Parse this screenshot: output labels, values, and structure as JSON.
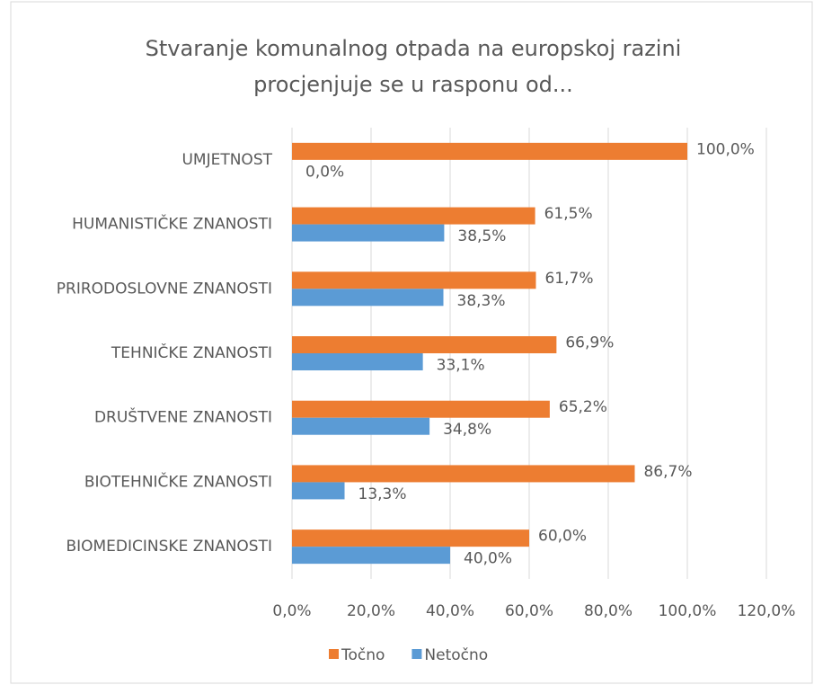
{
  "chart_data": {
    "type": "barh",
    "title": [
      "Stvaranje komunalnog otpada na europskoj razini",
      "procjenjuje se u rasponu od..."
    ],
    "categories": [
      "UMJETNOST",
      "HUMANISTIČKE ZNANOSTI",
      "PRIRODOSLOVNE ZNANOSTI",
      "TEHNIČKE ZNANOSTI",
      "DRUŠTVENE ZNANOSTI",
      "BIOTEHNIČKE ZNANOSTI",
      "BIOMEDICINSKE ZNANOSTI"
    ],
    "series": [
      {
        "name": "Točno",
        "color": "#ed7d31",
        "values": [
          100.0,
          61.5,
          61.7,
          66.9,
          65.2,
          86.7,
          60.0
        ],
        "value_labels": [
          "100,0%",
          "61,5%",
          "61,7%",
          "66,9%",
          "65,2%",
          "86,7%",
          "60,0%"
        ]
      },
      {
        "name": "Netočno",
        "color": "#5b9bd5",
        "values": [
          0.0,
          38.5,
          38.3,
          33.1,
          34.8,
          13.3,
          40.0
        ],
        "value_labels": [
          "0,0%",
          "38,5%",
          "38,3%",
          "33,1%",
          "34,8%",
          "13,3%",
          "40,0%"
        ]
      }
    ],
    "xlim": [
      0,
      120
    ],
    "xticks": [
      {
        "value": 0,
        "label": "0,0%"
      },
      {
        "value": 20,
        "label": "20,0%"
      },
      {
        "value": 40,
        "label": "40,0%"
      },
      {
        "value": 60,
        "label": "60,0%"
      },
      {
        "value": 80,
        "label": "80,0%"
      },
      {
        "value": 100,
        "label": "100,0%"
      },
      {
        "value": 120,
        "label": "120,0%"
      }
    ],
    "grid": true,
    "legend": "bottom"
  }
}
